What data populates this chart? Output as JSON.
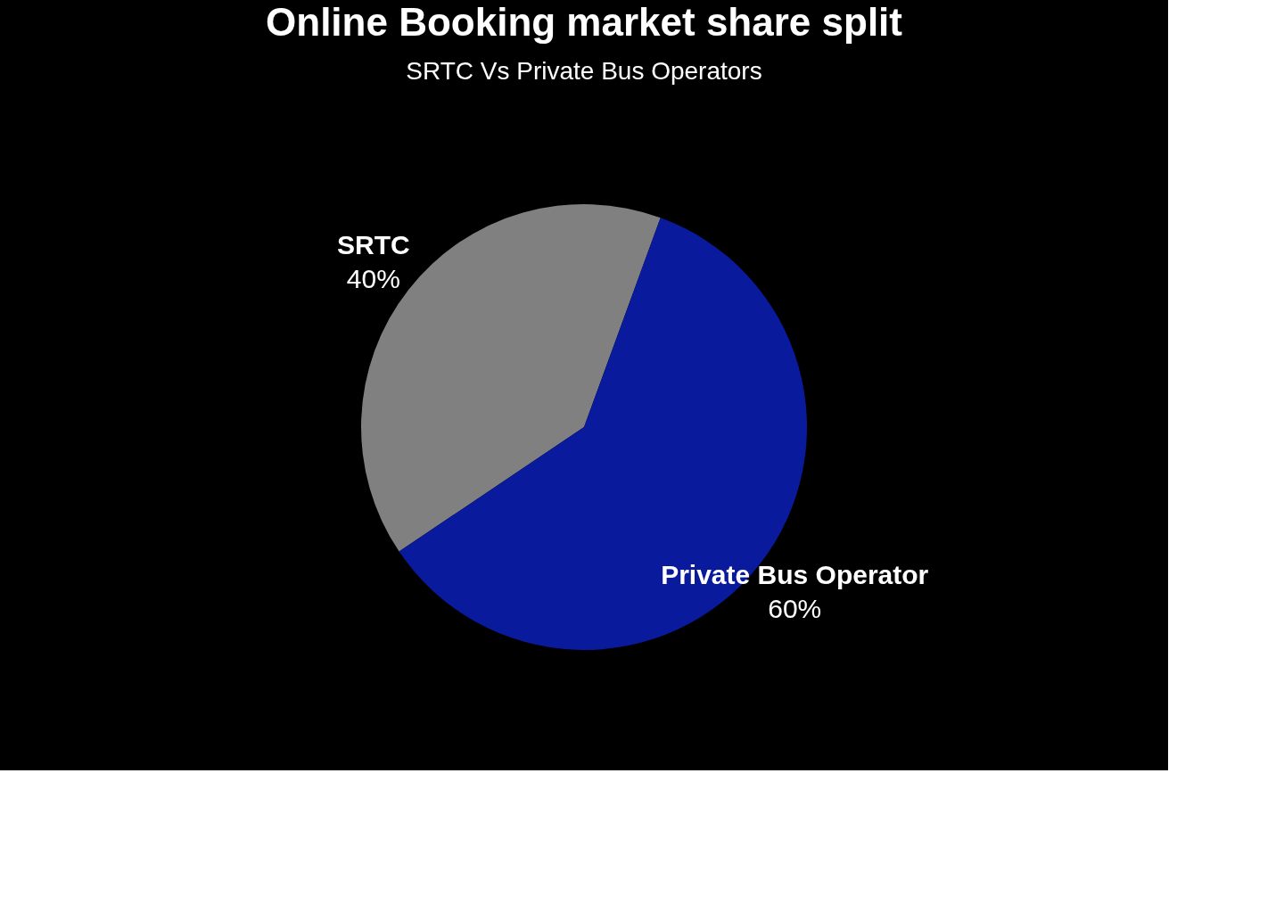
{
  "chart_data": {
    "type": "pie",
    "title": "Online Booking market share split",
    "subtitle": "SRTC Vs Private Bus Operators",
    "categories": [
      "SRTC",
      "Private Bus Operator"
    ],
    "values": [
      40,
      60
    ],
    "value_labels": [
      "40%",
      "60%"
    ],
    "colors": [
      "#808080",
      "#0a1a9c"
    ],
    "legend": false
  }
}
